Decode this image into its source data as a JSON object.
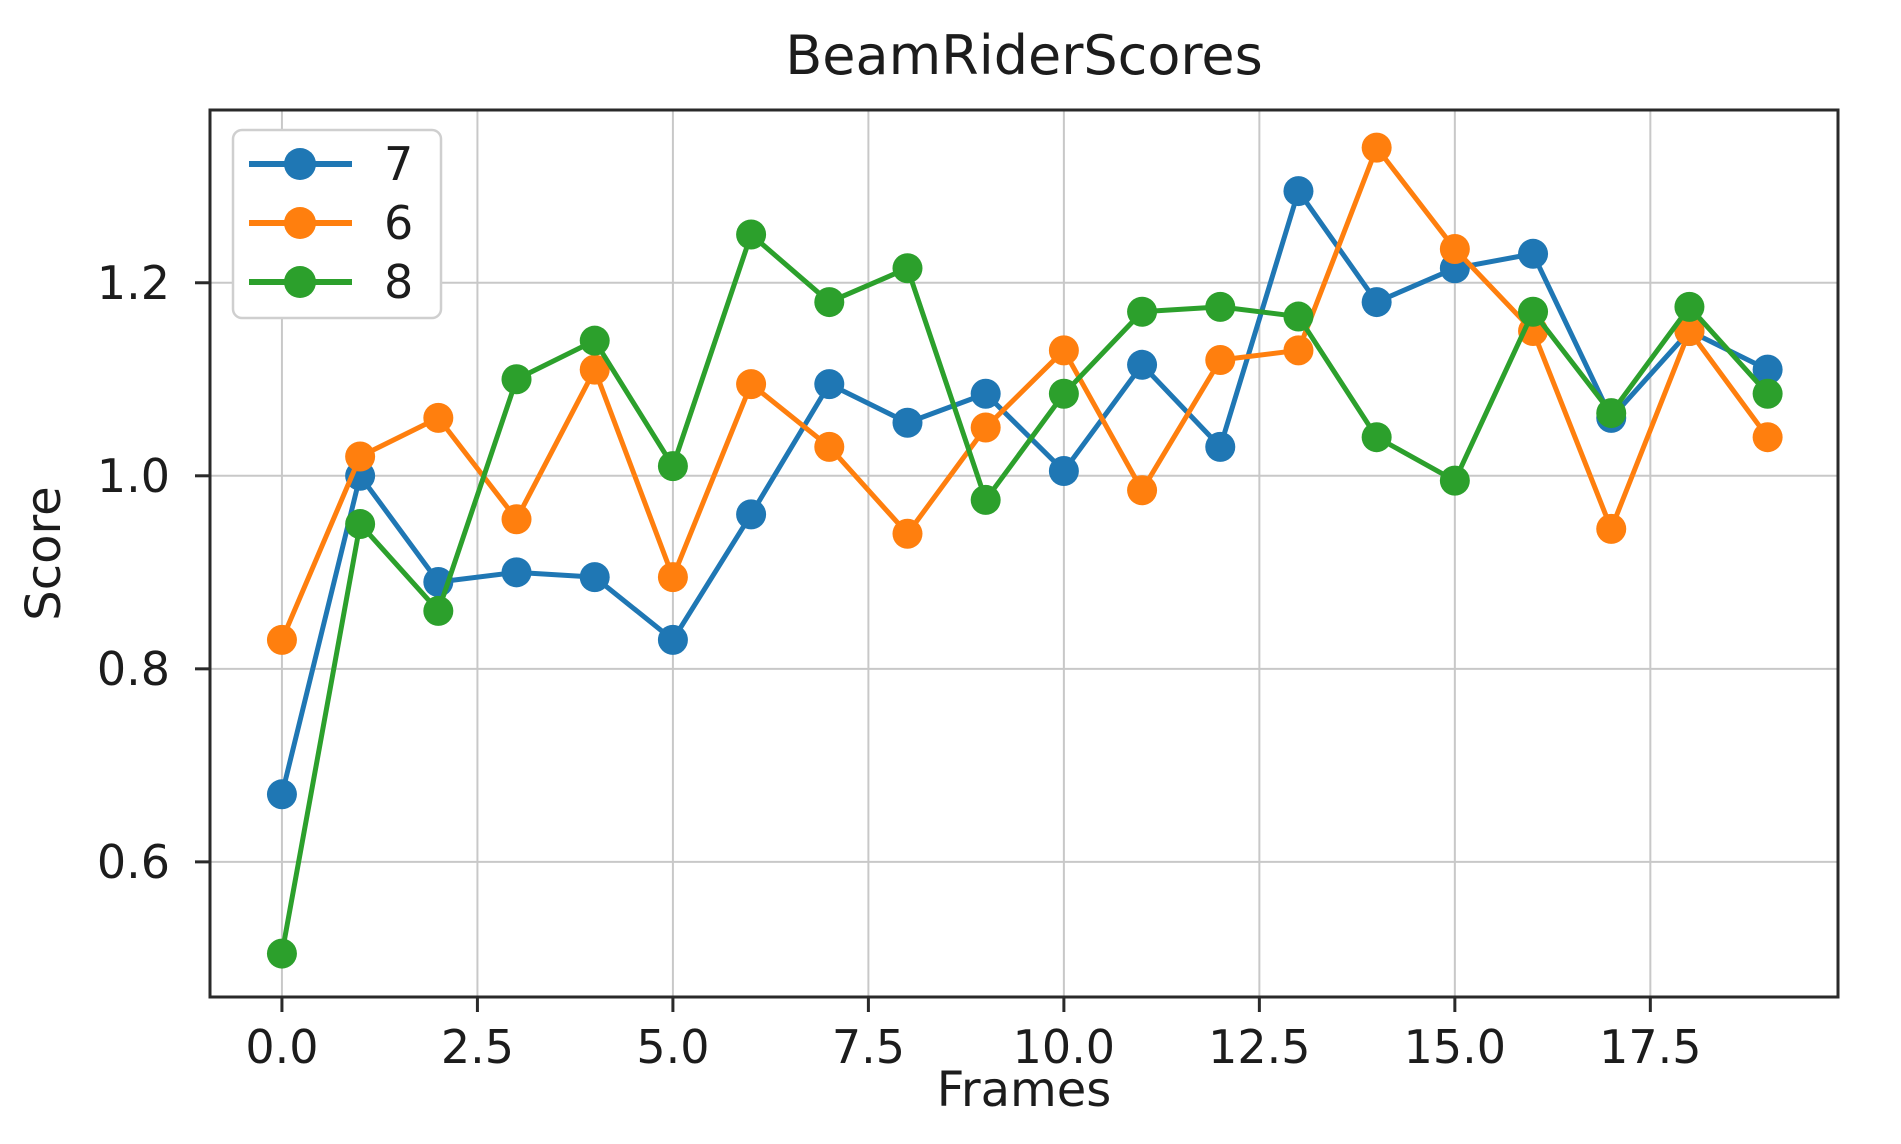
{
  "title": "BeamRiderScores",
  "legend": {
    "position": "upper left",
    "entries": [
      {
        "label": "7",
        "color": "#1f77b4"
      },
      {
        "label": "6",
        "color": "#ff7f0e"
      },
      {
        "label": "8",
        "color": "#2ca02c"
      }
    ]
  },
  "style_colors": {
    "grid": "#c8c8c8",
    "spine": "#2a2a2a",
    "text": "#1c1c1c",
    "legend_frame": "#cfcfcf",
    "background": "#ffffff"
  },
  "chart_data": {
    "type": "line",
    "title": "BeamRiderScores",
    "xlabel": "Frames",
    "ylabel": "Score",
    "x": [
      0,
      1,
      2,
      3,
      4,
      5,
      6,
      7,
      8,
      9,
      10,
      11,
      12,
      13,
      14,
      15,
      16,
      17,
      18,
      19
    ],
    "series": [
      {
        "name": "7",
        "color": "#1f77b4",
        "values": [
          0.67,
          1.0,
          0.89,
          0.9,
          0.895,
          0.83,
          0.96,
          1.095,
          1.055,
          1.085,
          1.005,
          1.115,
          1.03,
          1.295,
          1.18,
          1.215,
          1.23,
          1.06,
          1.15,
          1.11
        ]
      },
      {
        "name": "6",
        "color": "#ff7f0e",
        "values": [
          0.83,
          1.02,
          1.06,
          0.955,
          1.11,
          0.895,
          1.095,
          1.03,
          0.94,
          1.05,
          1.13,
          0.985,
          1.12,
          1.13,
          1.34,
          1.235,
          1.15,
          0.945,
          1.15,
          1.04
        ]
      },
      {
        "name": "8",
        "color": "#2ca02c",
        "values": [
          0.505,
          0.95,
          0.86,
          1.1,
          1.14,
          1.01,
          1.25,
          1.18,
          1.215,
          0.975,
          1.085,
          1.17,
          1.175,
          1.165,
          1.04,
          0.995,
          1.17,
          1.065,
          1.175,
          1.085
        ]
      }
    ],
    "x_ticks": [
      0,
      2.5,
      5,
      7.5,
      10,
      12.5,
      15,
      17.5
    ],
    "x_tick_labels": [
      "0.0",
      "2.5",
      "5.0",
      "7.5",
      "10.0",
      "12.5",
      "15.0",
      "17.5"
    ],
    "y_ticks": [
      0.6,
      0.8,
      1.0,
      1.2
    ],
    "y_tick_labels": [
      "0.6",
      "0.8",
      "1.0",
      "1.2"
    ],
    "xlim": [
      -0.92,
      19.9
    ],
    "ylim": [
      0.46,
      1.379
    ],
    "grid": true,
    "legend_position": "upper left"
  }
}
